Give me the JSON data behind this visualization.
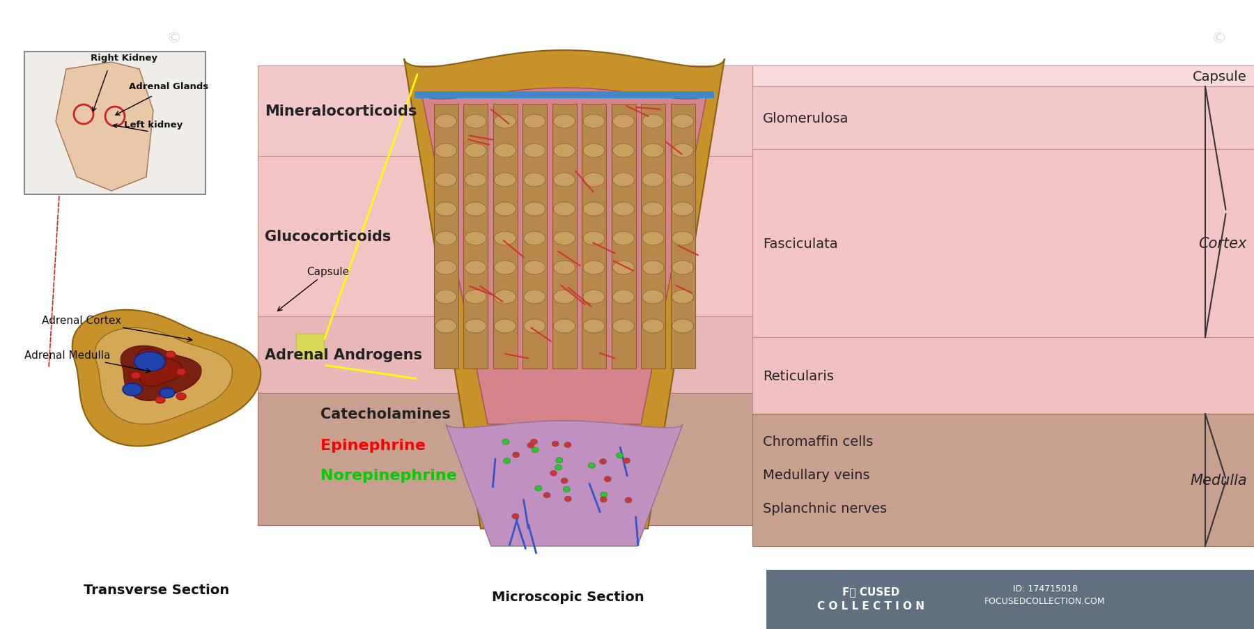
{
  "background_color": "#ffffff",
  "fig_width": 18.0,
  "fig_height": 9.04,
  "right_panel_bg_cortex": "#f2c8c8",
  "right_panel_bg_medulla": "#c8a090",
  "right_panel_bg_capsule_stripe": "#f7d8d8",
  "label_capsule": "Capsule",
  "label_glomerulosa": "Glomerulosa",
  "label_fasciculata": "Fasciculata",
  "label_reticularis": "Reticularis",
  "label_cortex": "Cortex",
  "label_medulla": "Medulla",
  "label_chromaffin": "Chromaffin cells",
  "label_medullary_veins": "Medullary veins",
  "label_splanchnic": "Splanchnic nerves",
  "label_mineralocorticoids": "Mineralocorticoids",
  "label_glucocorticoids": "Glucocorticoids",
  "label_adrenal_androgens": "Adrenal Androgens",
  "label_catecholamines": "Catecholamines",
  "label_epinephrine": "Epinephrine",
  "label_norepinephrine": "Norepinephrine",
  "label_transverse": "Transverse Section",
  "label_microscopic": "Microscopic Section",
  "label_right_kidney": "Right Kidney",
  "label_adrenal_glands": "Adrenal Glands",
  "label_left_kidney": "Left kidney",
  "label_capsule_small": "Capsule",
  "label_adrenal_cortex": "Adrenal Cortex",
  "label_adrenal_medulla": "Adrenal Medulla",
  "color_epinephrine": "#ff0000",
  "color_norepinephrine": "#00cc00",
  "color_black_text": "#1a1a1a",
  "color_dark_text": "#222222",
  "watermark_text": "Fⓞ CUSED\nC O L L E C T I O N",
  "watermark_id": "ID: 174715018",
  "watermark_url": "FOCUSEDCOLLECTION.COM",
  "watermark_bg": "#607080"
}
